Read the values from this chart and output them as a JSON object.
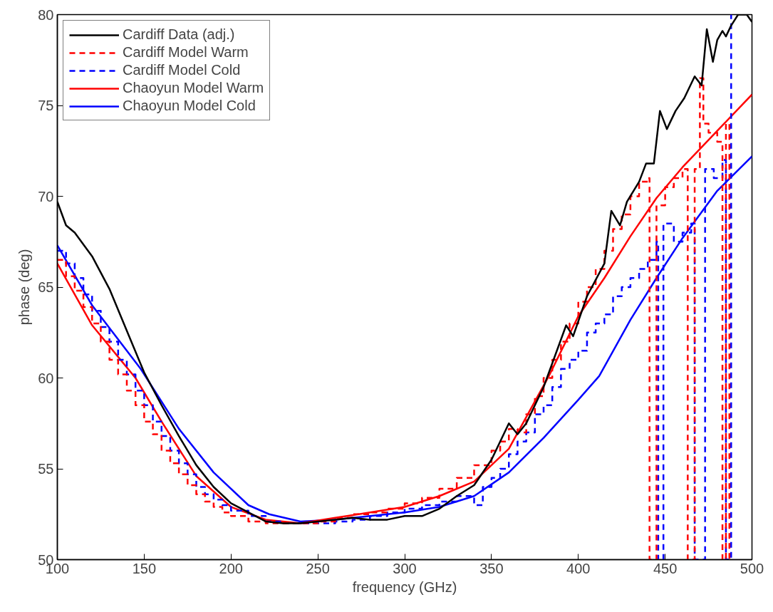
{
  "chart_data": {
    "type": "line",
    "xlabel": "frequency (GHz)",
    "ylabel": "phase (deg)",
    "xlim": [
      100,
      500
    ],
    "ylim": [
      50,
      80
    ],
    "xticks": [
      100,
      150,
      200,
      250,
      300,
      350,
      400,
      450,
      500
    ],
    "yticks": [
      50,
      55,
      60,
      65,
      70,
      75,
      80
    ],
    "grid": false,
    "legend": "top left",
    "marker": "none",
    "series": [
      {
        "name": "Cardiff Data (adj.)",
        "color": "#000000",
        "line_style": "solid",
        "x": [
          100,
          105,
          110,
          120,
          130,
          140,
          150,
          160,
          170,
          180,
          190,
          200,
          210,
          220,
          230,
          240,
          250,
          260,
          270,
          280,
          290,
          300,
          310,
          320,
          330,
          340,
          350,
          360,
          365,
          370,
          380,
          393,
          397,
          405,
          415,
          419,
          424,
          428,
          435,
          439,
          443.5,
          447,
          451,
          456,
          461,
          467,
          471,
          474,
          477.5,
          480,
          483,
          485,
          488,
          492,
          497,
          500
        ],
        "values": [
          69.7,
          68.4,
          68.0,
          66.7,
          64.9,
          62.6,
          60.3,
          58.5,
          56.8,
          55.2,
          54.0,
          53.1,
          52.6,
          52.1,
          52.0,
          52.0,
          52.1,
          52.2,
          52.3,
          52.2,
          52.2,
          52.4,
          52.4,
          52.8,
          53.5,
          54.1,
          55.5,
          57.5,
          56.9,
          57.5,
          59.5,
          62.9,
          62.3,
          64.5,
          66.3,
          69.2,
          68.4,
          69.7,
          70.8,
          71.8,
          71.8,
          74.7,
          73.7,
          74.7,
          75.4,
          76.6,
          76.1,
          79.2,
          77.4,
          78.6,
          79.1,
          78.8,
          79.4,
          80.0,
          80.0,
          79.6
        ]
      },
      {
        "name": "Cardiff Model Warm",
        "color": "#ff0000",
        "type": "step",
        "line_style": "dashed",
        "x": [
          100,
          105,
          110,
          115,
          120,
          125,
          130,
          135,
          140,
          145,
          150,
          155,
          160,
          165,
          170,
          175,
          180,
          185,
          190,
          195,
          200,
          210,
          220,
          230,
          240,
          250,
          260,
          270,
          280,
          290,
          300,
          310,
          320,
          330,
          340,
          350,
          355,
          360,
          365,
          370,
          375,
          380,
          385,
          390,
          395,
          400,
          405,
          410,
          415,
          420,
          425,
          430,
          435,
          440,
          441,
          444,
          445,
          450,
          455,
          460,
          463,
          466,
          467,
          470,
          472,
          475,
          480,
          483,
          485,
          487
        ],
        "values": [
          66.5,
          65.6,
          64.8,
          63.9,
          63.0,
          62.0,
          61.0,
          60.2,
          59.3,
          58.5,
          57.6,
          56.9,
          56.0,
          55.3,
          54.7,
          54.1,
          53.6,
          53.2,
          52.9,
          52.6,
          52.4,
          52.1,
          52.0,
          52.0,
          52.0,
          52.1,
          52.3,
          52.5,
          52.6,
          52.8,
          53.1,
          53.4,
          53.9,
          54.5,
          55.2,
          56.0,
          56.5,
          57.2,
          57.0,
          58.0,
          59.0,
          60.0,
          61.0,
          62.0,
          63.0,
          64.2,
          65.0,
          66.0,
          67.0,
          68.2,
          69.0,
          70.0,
          70.8,
          71.0,
          50,
          50,
          69.5,
          70.5,
          71.0,
          71.5,
          50,
          50,
          71.5,
          76.5,
          74.0,
          73.5,
          73.0,
          50,
          74.0,
          50
        ]
      },
      {
        "name": "Cardiff Model Cold",
        "color": "#0000ff",
        "type": "step",
        "line_style": "dashed",
        "x": [
          100,
          105,
          110,
          115,
          120,
          125,
          130,
          135,
          140,
          145,
          150,
          155,
          160,
          165,
          170,
          175,
          180,
          185,
          190,
          195,
          200,
          210,
          220,
          230,
          240,
          250,
          260,
          270,
          280,
          290,
          300,
          310,
          320,
          330,
          340,
          345,
          350,
          355,
          360,
          365,
          370,
          375,
          380,
          385,
          390,
          395,
          400,
          405,
          410,
          415,
          420,
          425,
          430,
          435,
          440,
          445,
          446,
          448,
          449,
          455,
          460,
          465,
          467,
          472,
          473,
          478,
          483,
          485,
          487,
          488
        ],
        "values": [
          67.0,
          66.3,
          65.5,
          64.6,
          63.7,
          62.8,
          62.0,
          61.0,
          60.2,
          59.3,
          58.5,
          57.6,
          56.8,
          56.0,
          55.3,
          54.7,
          54.0,
          53.6,
          53.3,
          53.0,
          52.7,
          52.4,
          52.1,
          52.0,
          52.0,
          52.0,
          52.1,
          52.2,
          52.4,
          52.6,
          52.8,
          53.0,
          53.2,
          53.5,
          53.0,
          54.0,
          54.5,
          55.0,
          55.8,
          56.5,
          57.0,
          58.0,
          58.5,
          59.5,
          60.5,
          61.0,
          61.5,
          62.5,
          63.0,
          63.5,
          64.5,
          65.0,
          65.5,
          66.0,
          66.5,
          67.5,
          50,
          50,
          68.5,
          67.5,
          68.0,
          68.5,
          50,
          50,
          71.5,
          71.0,
          72.0,
          50,
          50,
          80.0
        ]
      },
      {
        "name": "Chaoyun Model Warm",
        "color": "#ff0000",
        "line_style": "solid",
        "x": [
          100,
          120,
          145,
          160,
          180,
          200,
          220,
          240,
          260,
          280,
          300,
          320,
          340,
          360,
          383,
          400,
          415,
          430,
          445,
          460,
          480,
          500
        ],
        "values": [
          66.3,
          62.9,
          60.0,
          57.6,
          54.6,
          52.9,
          52.2,
          52.0,
          52.3,
          52.6,
          52.9,
          53.5,
          54.3,
          56.1,
          60.1,
          63.4,
          65.5,
          67.8,
          69.9,
          71.6,
          73.6,
          75.6
        ]
      },
      {
        "name": "Chaoyun Model Cold",
        "color": "#0000ff",
        "line_style": "solid",
        "x": [
          100,
          120,
          148,
          170,
          190,
          210,
          222,
          240,
          260,
          280,
          300,
          320,
          340,
          360,
          380,
          400,
          412,
          430,
          445,
          460,
          480,
          500
        ],
        "values": [
          67.3,
          64.0,
          60.5,
          57.2,
          54.8,
          53.0,
          52.5,
          52.1,
          52.2,
          52.4,
          52.6,
          52.9,
          53.5,
          54.8,
          56.7,
          58.8,
          60.1,
          63.2,
          65.5,
          67.7,
          70.3,
          72.2
        ]
      }
    ]
  }
}
